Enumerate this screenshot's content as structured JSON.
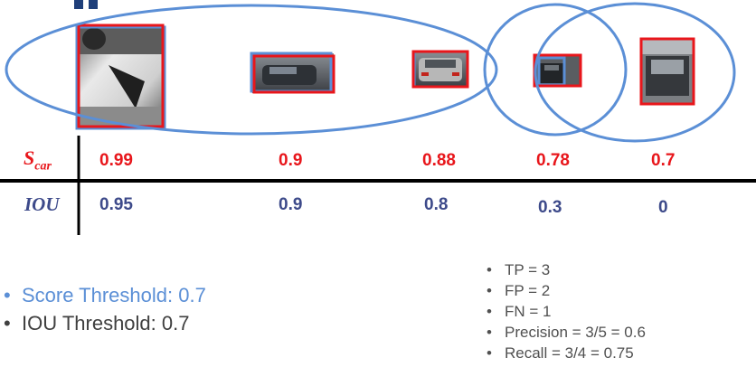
{
  "rows": {
    "score_label": {
      "main": "S",
      "sub": "car"
    },
    "iou_label": "IOU"
  },
  "detections": [
    {
      "score": "0.99",
      "iou": "0.95"
    },
    {
      "score": "0.9",
      "iou": "0.9"
    },
    {
      "score": "0.88",
      "iou": "0.8"
    },
    {
      "score": "0.78",
      "iou": "0.3"
    },
    {
      "score": "0.7",
      "iou": "0"
    }
  ],
  "thresholds": {
    "score": "Score Threshold: 0.7",
    "iou": "IOU Threshold: 0.7"
  },
  "metrics": {
    "tp": "TP = 3",
    "fp": "FP = 2",
    "fn": "FN = 1",
    "precision": "Precision = 3/5 = 0.6",
    "recall": "Recall = 3/4 = 0.75"
  },
  "colors": {
    "prediction_box": "#e8161b",
    "ground_truth_box": "#5b8fd6",
    "grouping_ellipse": "#5b8fd6",
    "iou_text": "#3d4a8a"
  }
}
